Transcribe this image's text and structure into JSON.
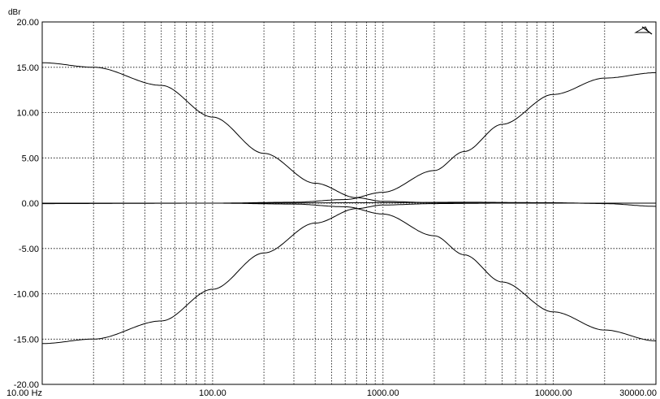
{
  "chart_data": {
    "type": "line",
    "title": "",
    "xlabel": "",
    "ylabel": "dBr",
    "xscale": "log",
    "xlim": [
      10,
      40000
    ],
    "ylim": [
      -20,
      20
    ],
    "grid": true,
    "y_ticks": [
      {
        "value": 20,
        "label": "20.00"
      },
      {
        "value": 15,
        "label": "15.00"
      },
      {
        "value": 10,
        "label": "10.00"
      },
      {
        "value": 5,
        "label": "5.00"
      },
      {
        "value": 0,
        "label": "0.00"
      },
      {
        "value": -5,
        "label": "-5.00"
      },
      {
        "value": -10,
        "label": "-10.00"
      },
      {
        "value": -15,
        "label": "-15.00"
      },
      {
        "value": -20,
        "label": "-20.00"
      }
    ],
    "x_ticks": [
      {
        "value": 10,
        "label": "10.00 Hz"
      },
      {
        "value": 100,
        "label": "100.00"
      },
      {
        "value": 1000,
        "label": "1000.00"
      },
      {
        "value": 10000,
        "label": "10000.00"
      },
      {
        "value": 30000,
        "label": "30000.00"
      }
    ],
    "x_gridlines": [
      20,
      30,
      40,
      50,
      60,
      70,
      80,
      90,
      100,
      200,
      300,
      400,
      500,
      600,
      700,
      800,
      900,
      1000,
      2000,
      3000,
      4000,
      5000,
      6000,
      7000,
      8000,
      9000,
      10000,
      20000
    ],
    "series": [
      {
        "values": [
          [
            10,
            15.5
          ],
          [
            20,
            15.0
          ],
          [
            50,
            13.0
          ],
          [
            100,
            9.5
          ],
          [
            200,
            5.5
          ],
          [
            400,
            2.2
          ],
          [
            700,
            0.6
          ],
          [
            1000,
            0.2
          ],
          [
            2000,
            0.05
          ],
          [
            5000,
            0.0
          ],
          [
            10000,
            0.0
          ],
          [
            20000,
            0.0
          ],
          [
            40000,
            0.0
          ]
        ]
      },
      {
        "values": [
          [
            10,
            -15.5
          ],
          [
            20,
            -15.0
          ],
          [
            50,
            -13.0
          ],
          [
            100,
            -9.5
          ],
          [
            200,
            -5.5
          ],
          [
            400,
            -2.2
          ],
          [
            700,
            -0.6
          ],
          [
            1000,
            -0.2
          ],
          [
            2000,
            -0.05
          ],
          [
            5000,
            0.0
          ],
          [
            10000,
            0.0
          ],
          [
            20000,
            0.0
          ],
          [
            40000,
            0.0
          ]
        ]
      },
      {
        "values": [
          [
            10,
            0.0
          ],
          [
            100,
            0.0
          ],
          [
            300,
            0.1
          ],
          [
            600,
            0.4
          ],
          [
            1000,
            1.2
          ],
          [
            2000,
            3.6
          ],
          [
            3000,
            5.7
          ],
          [
            5000,
            8.7
          ],
          [
            10000,
            12.0
          ],
          [
            20000,
            13.8
          ],
          [
            40000,
            14.4
          ]
        ]
      },
      {
        "values": [
          [
            10,
            0.0
          ],
          [
            100,
            0.0
          ],
          [
            300,
            -0.1
          ],
          [
            600,
            -0.4
          ],
          [
            1000,
            -1.2
          ],
          [
            2000,
            -3.6
          ],
          [
            3000,
            -5.7
          ],
          [
            5000,
            -8.7
          ],
          [
            10000,
            -12.0
          ],
          [
            20000,
            -14.0
          ],
          [
            40000,
            -15.2
          ]
        ]
      },
      {
        "values": [
          [
            10,
            -0.05
          ],
          [
            100,
            0.0
          ],
          [
            1000,
            0.05
          ],
          [
            3000,
            0.1
          ],
          [
            10000,
            0.05
          ],
          [
            20000,
            -0.05
          ],
          [
            40000,
            -0.35
          ]
        ]
      }
    ]
  }
}
